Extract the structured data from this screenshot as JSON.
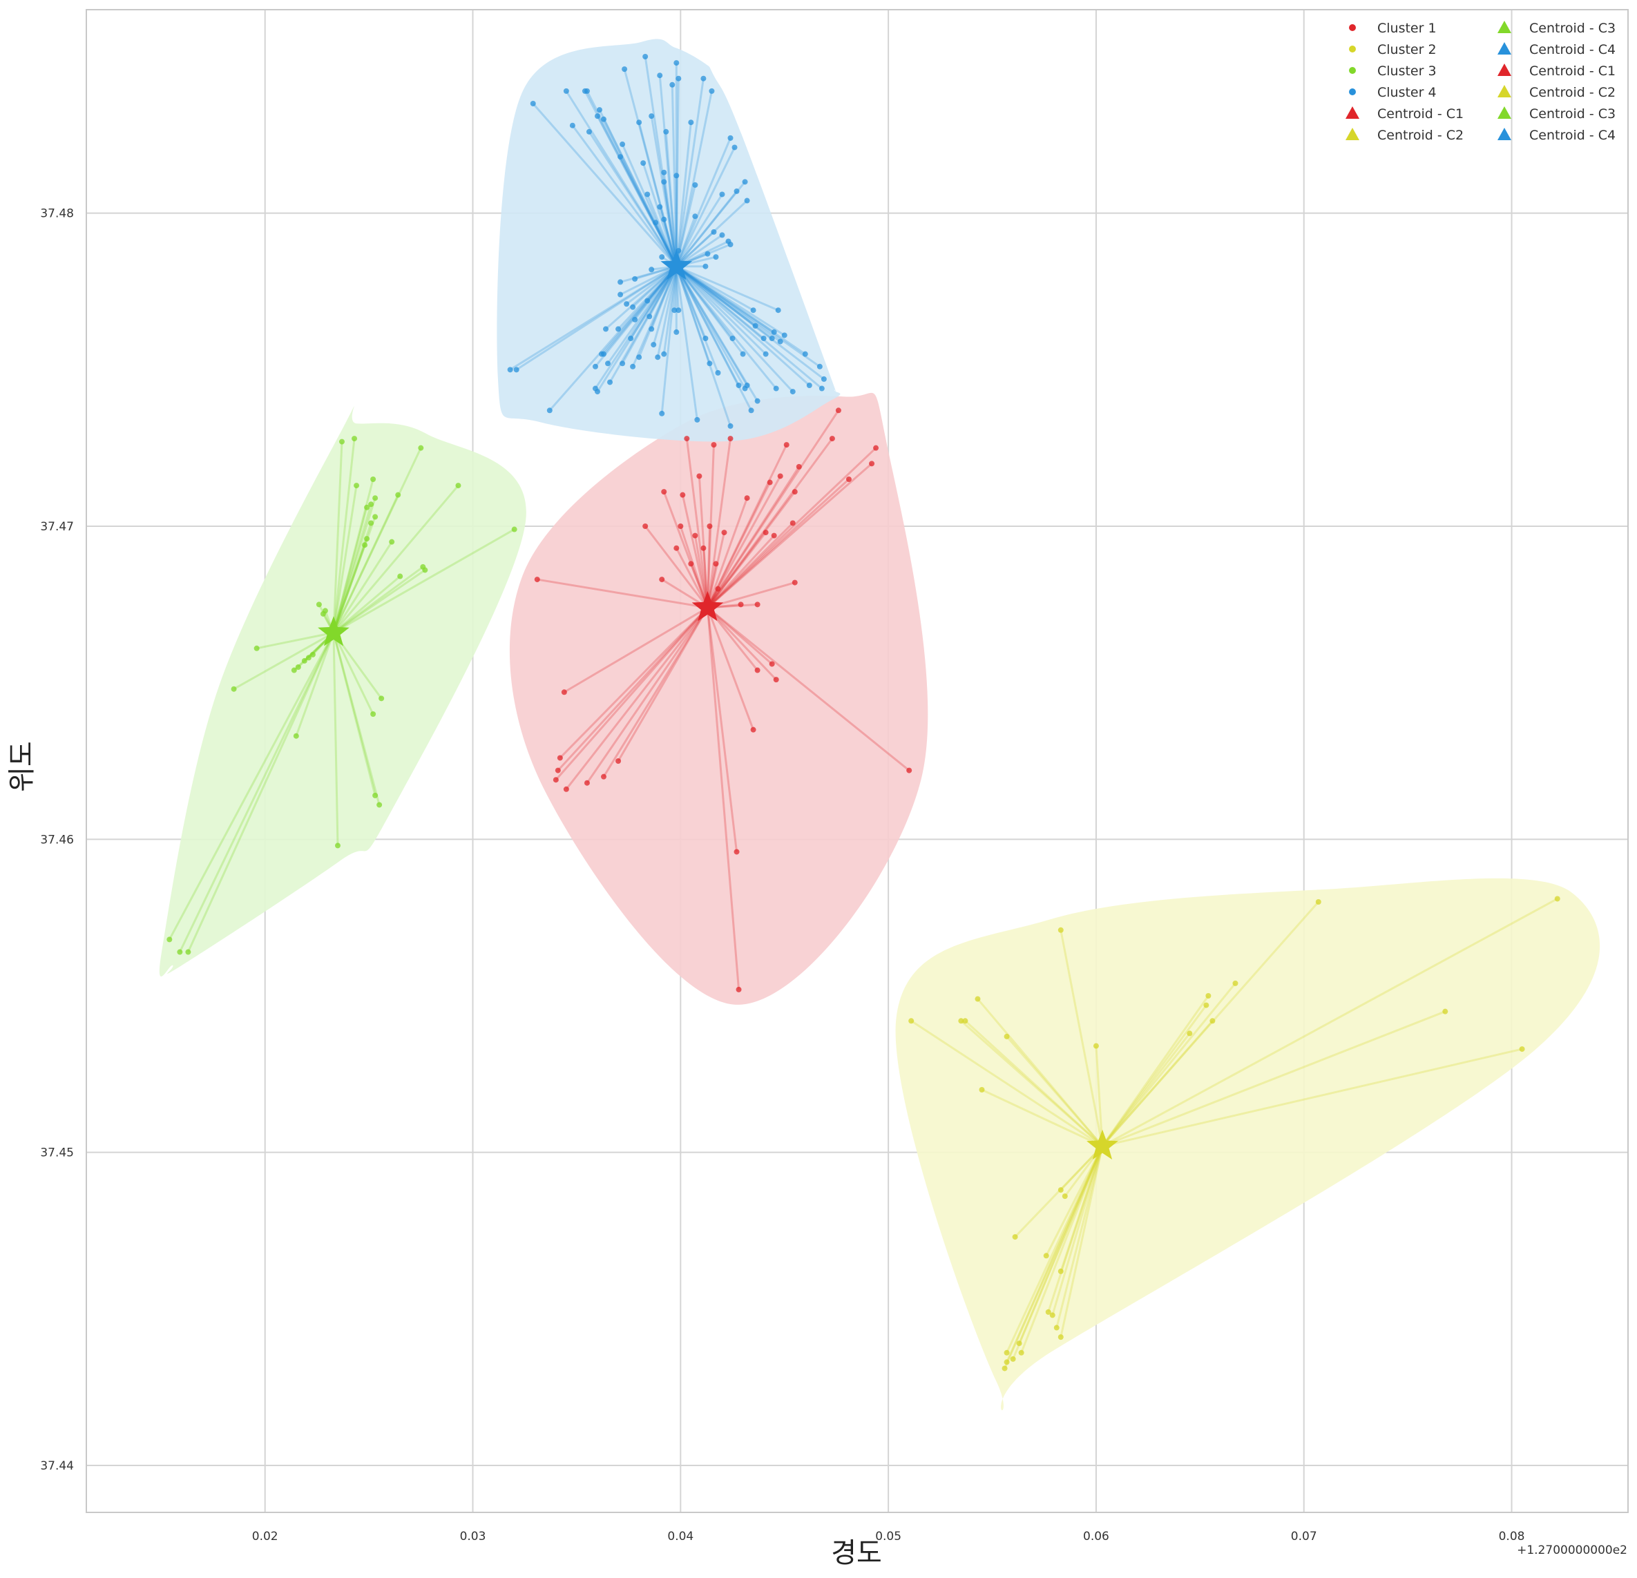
{
  "chart_data": {
    "type": "scatter",
    "title": "",
    "xlabel": "경도",
    "ylabel": "위도",
    "x_offset_label": "+1.2700000000e2",
    "x_offset": 127,
    "xlim": [
      0.0114,
      0.0856
    ],
    "ylim": [
      37.4385,
      37.4865
    ],
    "xticks": [
      0.02,
      0.03,
      0.04,
      0.05,
      0.06,
      0.07,
      0.08
    ],
    "xtick_labels": [
      "0.02",
      "0.03",
      "0.04",
      "0.05",
      "0.06",
      "0.07",
      "0.08"
    ],
    "yticks": [
      37.44,
      37.45,
      37.46,
      37.47,
      37.48
    ],
    "ytick_labels": [
      "37.44",
      "37.45",
      "37.46",
      "37.47",
      "37.48"
    ],
    "grid": true,
    "legend_placement": "top-right",
    "legend": {
      "columns": [
        [
          {
            "label": "Cluster 1",
            "marker": "circle",
            "color": "#e0262b"
          },
          {
            "label": "Cluster 2",
            "marker": "circle",
            "color": "#d6d62a"
          },
          {
            "label": "Cluster 3",
            "marker": "circle",
            "color": "#82d82a"
          },
          {
            "label": "Cluster 4",
            "marker": "circle",
            "color": "#2891db"
          },
          {
            "label": "Centroid - C1",
            "marker": "triangle",
            "color": "#e0262b"
          },
          {
            "label": "Centroid - C2",
            "marker": "triangle",
            "color": "#d6d62a"
          }
        ],
        [
          {
            "label": "Centroid - C3",
            "marker": "triangle",
            "color": "#82d82a"
          },
          {
            "label": "Centroid - C4",
            "marker": "triangle",
            "color": "#2891db"
          },
          {
            "label": "Centroid - C1",
            "marker": "triangle",
            "color": "#e0262b"
          },
          {
            "label": "Centroid - C2",
            "marker": "triangle",
            "color": "#d6d62a"
          },
          {
            "label": "Centroid - C3",
            "marker": "triangle",
            "color": "#82d82a"
          },
          {
            "label": "Centroid - C4",
            "marker": "triangle",
            "color": "#2891db"
          }
        ]
      ]
    },
    "series": [
      {
        "name": "Cluster 1",
        "color": "#e0262b",
        "fill": "#f7cdcf",
        "centroid": [
          0.0413,
          37.4674
        ],
        "points": [
          [
            0.0391,
            37.4683
          ],
          [
            0.0405,
            37.4688
          ],
          [
            0.0411,
            37.4693
          ],
          [
            0.0409,
            37.4716
          ],
          [
            0.0401,
            37.471
          ],
          [
            0.0392,
            37.4711
          ],
          [
            0.0383,
            37.47
          ],
          [
            0.0403,
            37.4728
          ],
          [
            0.0416,
            37.4726
          ],
          [
            0.0424,
            37.4728
          ],
          [
            0.0432,
            37.4709
          ],
          [
            0.0454,
            37.4701
          ],
          [
            0.0455,
            37.4682
          ],
          [
            0.0437,
            37.4675
          ],
          [
            0.0429,
            37.4675
          ],
          [
            0.0418,
            37.468
          ],
          [
            0.0398,
            37.4693
          ],
          [
            0.04,
            37.47
          ],
          [
            0.0407,
            37.4697
          ],
          [
            0.0414,
            37.47
          ],
          [
            0.0443,
            37.4714
          ],
          [
            0.0448,
            37.4716
          ],
          [
            0.0451,
            37.4726
          ],
          [
            0.0457,
            37.4719
          ],
          [
            0.0473,
            37.4728
          ],
          [
            0.0476,
            37.4737
          ],
          [
            0.0455,
            37.4711
          ],
          [
            0.0481,
            37.4715
          ],
          [
            0.0494,
            37.4725
          ],
          [
            0.0492,
            37.472
          ],
          [
            0.051,
            37.4622
          ],
          [
            0.0331,
            37.4683
          ],
          [
            0.0344,
            37.4647
          ],
          [
            0.0342,
            37.4626
          ],
          [
            0.0341,
            37.4622
          ],
          [
            0.034,
            37.4619
          ],
          [
            0.0345,
            37.4616
          ],
          [
            0.0355,
            37.4618
          ],
          [
            0.0363,
            37.462
          ],
          [
            0.037,
            37.4625
          ],
          [
            0.0437,
            37.4654
          ],
          [
            0.0444,
            37.4656
          ],
          [
            0.0446,
            37.4651
          ],
          [
            0.0435,
            37.4635
          ],
          [
            0.0427,
            37.4596
          ],
          [
            0.0428,
            37.4552
          ],
          [
            0.0421,
            37.4698
          ],
          [
            0.0417,
            37.4688
          ],
          [
            0.0441,
            37.4698
          ],
          [
            0.0445,
            37.4697
          ]
        ]
      },
      {
        "name": "Cluster 2",
        "color": "#d6d62a",
        "fill": "#f6f7cc",
        "centroid": [
          0.0603,
          37.4502
        ],
        "points": [
          [
            0.0511,
            37.4542
          ],
          [
            0.0535,
            37.4542
          ],
          [
            0.0537,
            37.4542
          ],
          [
            0.0543,
            37.4549
          ],
          [
            0.0545,
            37.452
          ],
          [
            0.0557,
            37.4537
          ],
          [
            0.0583,
            37.4571
          ],
          [
            0.06,
            37.4534
          ],
          [
            0.0645,
            37.4538
          ],
          [
            0.0653,
            37.4547
          ],
          [
            0.0654,
            37.455
          ],
          [
            0.0656,
            37.4542
          ],
          [
            0.0667,
            37.4554
          ],
          [
            0.0707,
            37.458
          ],
          [
            0.0768,
            37.4545
          ],
          [
            0.0805,
            37.4533
          ],
          [
            0.0822,
            37.4581
          ],
          [
            0.0583,
            37.4488
          ],
          [
            0.0585,
            37.4486
          ],
          [
            0.0561,
            37.4473
          ],
          [
            0.0576,
            37.4467
          ],
          [
            0.0583,
            37.4462
          ],
          [
            0.0577,
            37.4449
          ],
          [
            0.0579,
            37.4448
          ],
          [
            0.0581,
            37.4444
          ],
          [
            0.0583,
            37.4441
          ],
          [
            0.0563,
            37.4439
          ],
          [
            0.0564,
            37.4436
          ],
          [
            0.056,
            37.4434
          ],
          [
            0.0557,
            37.4433
          ],
          [
            0.0556,
            37.4431
          ],
          [
            0.0557,
            37.4436
          ]
        ]
      },
      {
        "name": "Cluster 3",
        "color": "#82d82a",
        "fill": "#e1f7d1",
        "centroid": [
          0.0233,
          37.4666
        ],
        "points": [
          [
            0.0237,
            37.4727
          ],
          [
            0.0243,
            37.4728
          ],
          [
            0.0275,
            37.4725
          ],
          [
            0.0244,
            37.4713
          ],
          [
            0.0252,
            37.4715
          ],
          [
            0.0251,
            37.4707
          ],
          [
            0.0249,
            37.4706
          ],
          [
            0.0253,
            37.4709
          ],
          [
            0.0253,
            37.4703
          ],
          [
            0.0251,
            37.4701
          ],
          [
            0.0249,
            37.4696
          ],
          [
            0.0248,
            37.4694
          ],
          [
            0.0264,
            37.471
          ],
          [
            0.0261,
            37.4695
          ],
          [
            0.0265,
            37.4684
          ],
          [
            0.0276,
            37.4687
          ],
          [
            0.0277,
            37.4686
          ],
          [
            0.0293,
            37.4713
          ],
          [
            0.032,
            37.4699
          ],
          [
            0.0226,
            37.4675
          ],
          [
            0.0229,
            37.4673
          ],
          [
            0.0228,
            37.4672
          ],
          [
            0.0223,
            37.4659
          ],
          [
            0.0221,
            37.4658
          ],
          [
            0.0219,
            37.4657
          ],
          [
            0.0216,
            37.4655
          ],
          [
            0.0214,
            37.4654
          ],
          [
            0.0196,
            37.4661
          ],
          [
            0.0185,
            37.4648
          ],
          [
            0.0215,
            37.4633
          ],
          [
            0.0252,
            37.464
          ],
          [
            0.0256,
            37.4645
          ],
          [
            0.0253,
            37.4614
          ],
          [
            0.0255,
            37.4611
          ],
          [
            0.0235,
            37.4598
          ],
          [
            0.0154,
            37.4568
          ],
          [
            0.0159,
            37.4564
          ],
          [
            0.0163,
            37.4564
          ]
        ]
      },
      {
        "name": "Cluster 4",
        "color": "#2891db",
        "fill": "#d0e8f6",
        "centroid": [
          0.0398,
          37.4783
        ],
        "points": [
          [
            0.0383,
            37.485
          ],
          [
            0.039,
            37.4844
          ],
          [
            0.0398,
            37.4848
          ],
          [
            0.0399,
            37.4843
          ],
          [
            0.0396,
            37.4841
          ],
          [
            0.0411,
            37.4843
          ],
          [
            0.0415,
            37.4839
          ],
          [
            0.0373,
            37.4846
          ],
          [
            0.0355,
            37.4839
          ],
          [
            0.0354,
            37.4839
          ],
          [
            0.0345,
            37.4839
          ],
          [
            0.0329,
            37.4835
          ],
          [
            0.0348,
            37.4828
          ],
          [
            0.0356,
            37.4826
          ],
          [
            0.036,
            37.4831
          ],
          [
            0.0361,
            37.4833
          ],
          [
            0.0363,
            37.483
          ],
          [
            0.038,
            37.4829
          ],
          [
            0.0386,
            37.4831
          ],
          [
            0.0405,
            37.4829
          ],
          [
            0.0393,
            37.4826
          ],
          [
            0.0372,
            37.4822
          ],
          [
            0.0371,
            37.4818
          ],
          [
            0.0382,
            37.4816
          ],
          [
            0.0392,
            37.4813
          ],
          [
            0.0384,
            37.4806
          ],
          [
            0.0392,
            37.481
          ],
          [
            0.0398,
            37.4812
          ],
          [
            0.0407,
            37.4809
          ],
          [
            0.0424,
            37.4824
          ],
          [
            0.0426,
            37.4821
          ],
          [
            0.0431,
            37.481
          ],
          [
            0.0432,
            37.4804
          ],
          [
            0.042,
            37.4806
          ],
          [
            0.0427,
            37.4807
          ],
          [
            0.039,
            37.4802
          ],
          [
            0.0392,
            37.4798
          ],
          [
            0.0388,
            37.4797
          ],
          [
            0.0407,
            37.4799
          ],
          [
            0.042,
            37.4793
          ],
          [
            0.0416,
            37.4794
          ],
          [
            0.0423,
            37.4791
          ],
          [
            0.0424,
            37.479
          ],
          [
            0.0412,
            37.4783
          ],
          [
            0.0417,
            37.4786
          ],
          [
            0.0413,
            37.4787
          ],
          [
            0.0399,
            37.4788
          ],
          [
            0.0391,
            37.4786
          ],
          [
            0.0386,
            37.4782
          ],
          [
            0.0378,
            37.4779
          ],
          [
            0.0371,
            37.4778
          ],
          [
            0.0371,
            37.4774
          ],
          [
            0.0377,
            37.477
          ],
          [
            0.0374,
            37.4771
          ],
          [
            0.0384,
            37.4772
          ],
          [
            0.0385,
            37.4767
          ],
          [
            0.0378,
            37.4766
          ],
          [
            0.0386,
            37.4763
          ],
          [
            0.0397,
            37.4769
          ],
          [
            0.0399,
            37.4769
          ],
          [
            0.0398,
            37.4762
          ],
          [
            0.0387,
            37.4758
          ],
          [
            0.0389,
            37.4754
          ],
          [
            0.0392,
            37.4755
          ],
          [
            0.0376,
            37.476
          ],
          [
            0.037,
            37.4763
          ],
          [
            0.0364,
            37.4763
          ],
          [
            0.0362,
            37.4755
          ],
          [
            0.0363,
            37.4755
          ],
          [
            0.0365,
            37.4752
          ],
          [
            0.0372,
            37.4752
          ],
          [
            0.0377,
            37.4751
          ],
          [
            0.038,
            37.4754
          ],
          [
            0.0366,
            37.4746
          ],
          [
            0.0359,
            37.4744
          ],
          [
            0.036,
            37.4743
          ],
          [
            0.0359,
            37.4751
          ],
          [
            0.0412,
            37.476
          ],
          [
            0.0414,
            37.4752
          ],
          [
            0.0418,
            37.4749
          ],
          [
            0.0425,
            37.476
          ],
          [
            0.043,
            37.4755
          ],
          [
            0.0436,
            37.4764
          ],
          [
            0.044,
            37.476
          ],
          [
            0.0441,
            37.4755
          ],
          [
            0.0444,
            37.476
          ],
          [
            0.0445,
            37.4762
          ],
          [
            0.0448,
            37.4759
          ],
          [
            0.045,
            37.4761
          ],
          [
            0.0447,
            37.4769
          ],
          [
            0.0435,
            37.4769
          ],
          [
            0.046,
            37.4755
          ],
          [
            0.0467,
            37.4751
          ],
          [
            0.0469,
            37.4747
          ],
          [
            0.0462,
            37.4745
          ],
          [
            0.0468,
            37.4744
          ],
          [
            0.0432,
            37.4745
          ],
          [
            0.0431,
            37.4744
          ],
          [
            0.0428,
            37.4745
          ],
          [
            0.0437,
            37.474
          ],
          [
            0.0446,
            37.4744
          ],
          [
            0.0454,
            37.4743
          ],
          [
            0.0318,
            37.475
          ],
          [
            0.0321,
            37.475
          ],
          [
            0.0337,
            37.4737
          ],
          [
            0.0391,
            37.4736
          ],
          [
            0.0408,
            37.4734
          ],
          [
            0.0424,
            37.4732
          ],
          [
            0.0434,
            37.4737
          ]
        ]
      }
    ]
  }
}
